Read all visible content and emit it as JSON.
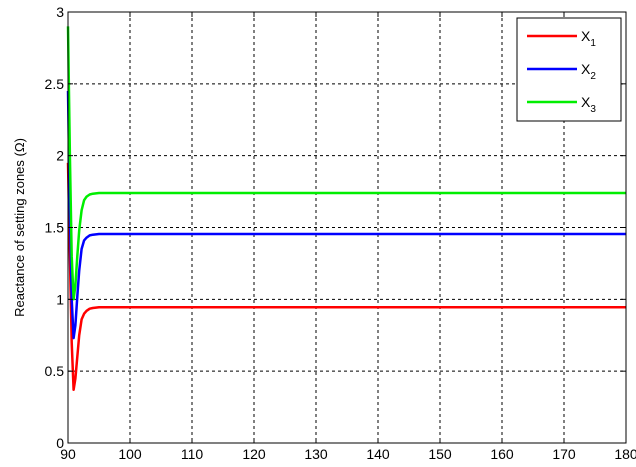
{
  "chart_data": {
    "type": "line",
    "ylabel": "Reactance of setting zones (Ω)",
    "xlabel": "",
    "title": "",
    "xlim": [
      90,
      180
    ],
    "ylim": [
      0,
      3
    ],
    "xticks": [
      90,
      100,
      110,
      120,
      130,
      140,
      150,
      160,
      170,
      180
    ],
    "yticks": [
      0,
      0.5,
      1,
      1.5,
      2,
      2.5,
      3
    ],
    "xtick_labels": [
      "90",
      "100",
      "110",
      "120",
      "130",
      "140",
      "150",
      "160",
      "170",
      "180"
    ],
    "ytick_labels": [
      "0",
      "0.5",
      "1",
      "1.5",
      "2",
      "2.5",
      "3"
    ],
    "grid": true,
    "legend": "top-right",
    "series": [
      {
        "name": "X1",
        "label_main": "X",
        "label_sub": "1",
        "color": "#ff0000",
        "x": [
          90,
          90.3,
          90.6,
          90.9,
          91.2,
          91.5,
          91.8,
          92.2,
          92.6,
          93.0,
          93.5,
          94.0,
          95.0,
          97.0,
          100,
          120,
          140,
          160,
          180
        ],
        "y": [
          1.95,
          1.3,
          0.7,
          0.37,
          0.45,
          0.6,
          0.75,
          0.86,
          0.9,
          0.92,
          0.935,
          0.94,
          0.945,
          0.945,
          0.945,
          0.945,
          0.945,
          0.945,
          0.945
        ]
      },
      {
        "name": "X2",
        "label_main": "X",
        "label_sub": "2",
        "color": "#0000ff",
        "x": [
          90,
          90.3,
          90.6,
          90.9,
          91.2,
          91.5,
          91.8,
          92.2,
          92.6,
          93.0,
          93.5,
          94.0,
          95.0,
          97.0,
          100,
          120,
          140,
          160,
          180
        ],
        "y": [
          2.45,
          1.6,
          1.0,
          0.73,
          0.82,
          1.02,
          1.2,
          1.35,
          1.41,
          1.43,
          1.445,
          1.45,
          1.455,
          1.455,
          1.455,
          1.455,
          1.455,
          1.455,
          1.455
        ]
      },
      {
        "name": "X3",
        "label_main": "X",
        "label_sub": "3",
        "color": "#00ee00",
        "x": [
          90,
          90.3,
          90.6,
          90.9,
          91.2,
          91.5,
          91.8,
          92.2,
          92.6,
          93.0,
          93.5,
          94.0,
          95.0,
          97.0,
          100,
          120,
          140,
          160,
          180
        ],
        "y": [
          2.9,
          2.0,
          1.3,
          1.0,
          1.1,
          1.3,
          1.48,
          1.62,
          1.69,
          1.715,
          1.73,
          1.735,
          1.74,
          1.74,
          1.74,
          1.74,
          1.74,
          1.74,
          1.74
        ]
      }
    ]
  }
}
